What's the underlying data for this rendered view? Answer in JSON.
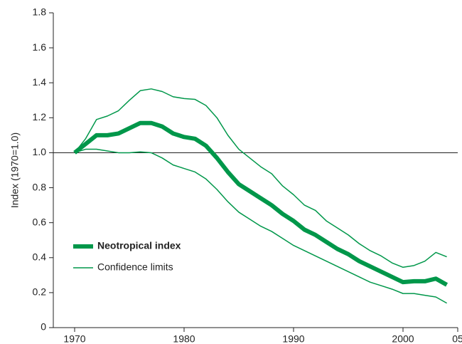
{
  "chart_data": {
    "type": "line",
    "y_label": "Index (1970=1.0)",
    "x": [
      1970,
      1971,
      1972,
      1973,
      1974,
      1975,
      1976,
      1977,
      1978,
      1979,
      1980,
      1981,
      1982,
      1983,
      1984,
      1985,
      1986,
      1987,
      1988,
      1989,
      1990,
      1991,
      1992,
      1993,
      1994,
      1995,
      1996,
      1997,
      1998,
      1999,
      2000,
      2001,
      2002,
      2003,
      2004
    ],
    "series": [
      {
        "name": "Neotropical index",
        "color": "#00974a",
        "values": [
          1.0,
          1.05,
          1.1,
          1.1,
          1.11,
          1.14,
          1.17,
          1.17,
          1.15,
          1.11,
          1.09,
          1.08,
          1.04,
          0.97,
          0.89,
          0.82,
          0.78,
          0.74,
          0.7,
          0.65,
          0.61,
          0.56,
          0.53,
          0.49,
          0.45,
          0.42,
          0.38,
          0.35,
          0.32,
          0.29,
          0.26,
          0.265,
          0.265,
          0.28,
          0.245
        ]
      }
    ],
    "confidence": {
      "name": "Confidence limits",
      "color": "#00974a",
      "upper": [
        1.0,
        1.08,
        1.19,
        1.21,
        1.24,
        1.3,
        1.355,
        1.365,
        1.35,
        1.32,
        1.31,
        1.305,
        1.27,
        1.2,
        1.1,
        1.02,
        0.97,
        0.92,
        0.88,
        0.81,
        0.76,
        0.7,
        0.67,
        0.61,
        0.57,
        0.53,
        0.48,
        0.44,
        0.41,
        0.37,
        0.345,
        0.355,
        0.38,
        0.43,
        0.405
      ],
      "lower": [
        1.0,
        1.02,
        1.02,
        1.01,
        1.0,
        1.0,
        1.005,
        1.0,
        0.97,
        0.93,
        0.91,
        0.89,
        0.85,
        0.79,
        0.72,
        0.66,
        0.62,
        0.58,
        0.55,
        0.51,
        0.47,
        0.44,
        0.41,
        0.38,
        0.35,
        0.32,
        0.29,
        0.26,
        0.24,
        0.22,
        0.195,
        0.195,
        0.185,
        0.175,
        0.14
      ]
    },
    "reference_line": 1,
    "xlim": [
      1970,
      2005
    ],
    "xticks": [
      1970,
      1980,
      1990,
      2000,
      {
        "value": 2005,
        "label": "05"
      }
    ],
    "ylim": [
      0,
      1.8
    ],
    "yticks": [
      0,
      0.2,
      0.4,
      0.6,
      0.8,
      {
        "value": 1,
        "label": "1.0"
      },
      1.2,
      1.4,
      1.6,
      1.8
    ],
    "legend": "lower left"
  }
}
